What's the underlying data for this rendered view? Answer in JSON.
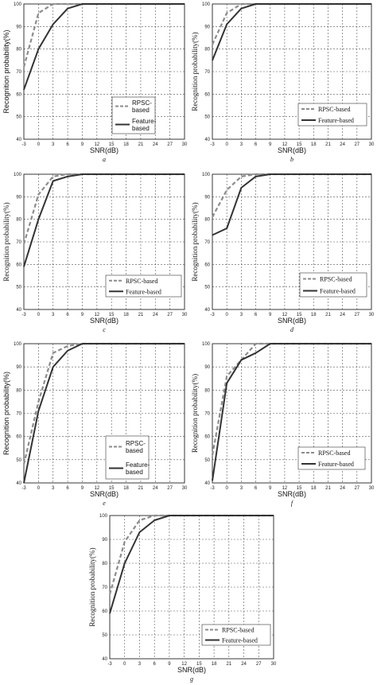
{
  "chart_data": [
    {
      "type": "line",
      "caption": "a",
      "xlabel": "SNR(dB)",
      "ylabel": "Recognition probability(%)",
      "xlim": [
        -3,
        30
      ],
      "ylim": [
        40,
        100
      ],
      "xticks": [
        "-3",
        "0",
        "3",
        "6",
        "9",
        "12",
        "15",
        "18",
        "21",
        "24",
        "27",
        "30"
      ],
      "yticks": [
        "40",
        "50",
        "60",
        "70",
        "80",
        "90",
        "100"
      ],
      "legend": {
        "entries": [
          "RPSC-\nbased",
          "Feature-\nbased"
        ],
        "position": "lower-right"
      },
      "series": [
        {
          "name": "RPSC-\nbased",
          "style": "dashed",
          "color": "#8c8c8c",
          "x": [
            -3,
            0,
            3,
            6,
            9,
            12,
            15,
            18,
            21,
            24,
            27,
            30
          ],
          "y": [
            72,
            96,
            100,
            100,
            100,
            100,
            100,
            100,
            100,
            100,
            100,
            100
          ]
        },
        {
          "name": "Feature-\nbased",
          "style": "solid",
          "color": "#333333",
          "x": [
            -3,
            0,
            3,
            6,
            9,
            12,
            15,
            18,
            21,
            24,
            27,
            30
          ],
          "y": [
            62,
            80,
            91,
            98,
            100,
            100,
            100,
            100,
            100,
            100,
            100,
            100
          ]
        }
      ]
    },
    {
      "type": "line",
      "caption": "b",
      "xlabel": "SNR(dB)",
      "ylabel": "Recognition probability(%)",
      "xlim": [
        -3,
        30
      ],
      "ylim": [
        40,
        100
      ],
      "xticks": [
        "-3",
        "0",
        "3",
        "6",
        "9",
        "12",
        "15",
        "18",
        "21",
        "24",
        "27",
        "30"
      ],
      "yticks": [
        "40",
        "50",
        "60",
        "70",
        "80",
        "90",
        "100"
      ],
      "legend": {
        "entries": [
          "RPSC-based",
          "Feature-based"
        ],
        "position": "lower-right"
      },
      "series": [
        {
          "name": "RPSC-based",
          "style": "dashed",
          "color": "#8c8c8c",
          "x": [
            -3,
            0,
            3,
            6,
            9,
            12,
            15,
            18,
            21,
            24,
            27,
            30
          ],
          "y": [
            82,
            96,
            100,
            100,
            100,
            100,
            100,
            100,
            100,
            100,
            100,
            100
          ]
        },
        {
          "name": "Feature-based",
          "style": "solid",
          "color": "#333333",
          "x": [
            -3,
            0,
            3,
            6,
            9,
            12,
            15,
            18,
            21,
            24,
            27,
            30
          ],
          "y": [
            75,
            91,
            98,
            100,
            100,
            100,
            100,
            100,
            100,
            100,
            100,
            100
          ]
        }
      ]
    },
    {
      "type": "line",
      "caption": "c",
      "xlabel": "SNR(dB)",
      "ylabel": "Recognition probability(%)",
      "xlim": [
        -3,
        30
      ],
      "ylim": [
        40,
        100
      ],
      "xticks": [
        "-3",
        "0",
        "3",
        "6",
        "9",
        "12",
        "15",
        "18",
        "21",
        "24",
        "27",
        "30"
      ],
      "yticks": [
        "40",
        "50",
        "60",
        "70",
        "80",
        "90",
        "100"
      ],
      "legend": {
        "entries": [
          "RPSC-based",
          "Feature-based"
        ],
        "position": "lower-right"
      },
      "series": [
        {
          "name": "RPSC-based",
          "style": "dashed",
          "color": "#8c8c8c",
          "x": [
            -3,
            0,
            3,
            6,
            9,
            12,
            15,
            18,
            21,
            24,
            27,
            30
          ],
          "y": [
            69,
            91,
            99,
            100,
            100,
            100,
            100,
            100,
            100,
            100,
            100,
            100
          ]
        },
        {
          "name": "Feature-based",
          "style": "solid",
          "color": "#333333",
          "x": [
            -3,
            0,
            3,
            6,
            9,
            12,
            15,
            18,
            21,
            24,
            27,
            30
          ],
          "y": [
            59,
            80,
            97,
            99,
            100,
            100,
            100,
            100,
            100,
            100,
            100,
            100
          ]
        }
      ]
    },
    {
      "type": "line",
      "caption": "d",
      "xlabel": "SNR(dB)",
      "ylabel": "Recognition probability(%)",
      "xlim": [
        -3,
        30
      ],
      "ylim": [
        40,
        100
      ],
      "xticks": [
        "-3",
        "0",
        "3",
        "6",
        "9",
        "12",
        "15",
        "18",
        "21",
        "24",
        "27",
        "30"
      ],
      "yticks": [
        "40",
        "50",
        "60",
        "70",
        "80",
        "90",
        "100"
      ],
      "legend": {
        "entries": [
          "RPSC-based",
          "Feature-based"
        ],
        "position": "lower-right"
      },
      "series": [
        {
          "name": "RPSC-based",
          "style": "dashed",
          "color": "#8c8c8c",
          "x": [
            -3,
            0,
            3,
            6,
            9,
            12,
            15,
            18,
            21,
            24,
            27,
            30
          ],
          "y": [
            81,
            93,
            99,
            100,
            100,
            100,
            100,
            100,
            100,
            100,
            100,
            100
          ]
        },
        {
          "name": "Feature-based",
          "style": "solid",
          "color": "#333333",
          "x": [
            -3,
            0,
            3,
            6,
            9,
            12,
            15,
            18,
            21,
            24,
            27,
            30
          ],
          "y": [
            73,
            76,
            94,
            99,
            100,
            100,
            100,
            100,
            100,
            100,
            100,
            100
          ]
        }
      ]
    },
    {
      "type": "line",
      "caption": "e",
      "xlabel": "SNR(dB)",
      "ylabel": "Recognition probability(%)",
      "xlim": [
        -3,
        30
      ],
      "ylim": [
        40,
        100
      ],
      "xticks": [
        "-3",
        "0",
        "3",
        "6",
        "9",
        "12",
        "15",
        "18",
        "21",
        "24",
        "27",
        "30"
      ],
      "yticks": [
        "40",
        "50",
        "60",
        "70",
        "80",
        "90",
        "100"
      ],
      "legend": {
        "entries": [
          "RPSC-\nbased",
          "Feature-\nbased"
        ],
        "position": "lower-right"
      },
      "series": [
        {
          "name": "RPSC-\nbased",
          "style": "dashed",
          "color": "#8c8c8c",
          "x": [
            -3,
            0,
            3,
            6,
            9,
            12,
            15,
            18,
            21,
            24,
            27,
            30
          ],
          "y": [
            48,
            75,
            96,
            99,
            100,
            100,
            100,
            100,
            100,
            100,
            100,
            100
          ]
        },
        {
          "name": "Feature-\nbased",
          "style": "solid",
          "color": "#333333",
          "x": [
            -3,
            0,
            3,
            6,
            9,
            12,
            15,
            18,
            21,
            24,
            27,
            30
          ],
          "y": [
            40,
            71,
            90,
            97,
            100,
            100,
            100,
            100,
            100,
            100,
            100,
            100
          ]
        }
      ]
    },
    {
      "type": "line",
      "caption": "f",
      "xlabel": "SNR(dB)",
      "ylabel": "Recognition probability(%)",
      "xlim": [
        -3,
        30
      ],
      "ylim": [
        40,
        100
      ],
      "xticks": [
        "-3",
        "0",
        "3",
        "6",
        "9",
        "12",
        "15",
        "18",
        "21",
        "24",
        "27",
        "30"
      ],
      "yticks": [
        "40",
        "50",
        "60",
        "70",
        "80",
        "90",
        "100"
      ],
      "legend": {
        "entries": [
          "RPSC-based",
          "Feature-based"
        ],
        "position": "lower-right"
      },
      "series": [
        {
          "name": "RPSC-based",
          "style": "dashed",
          "color": "#8c8c8c",
          "x": [
            -3,
            0,
            3,
            6,
            9,
            12,
            15,
            18,
            21,
            24,
            27,
            30
          ],
          "y": [
            52,
            86,
            93,
            100,
            100,
            100,
            100,
            100,
            100,
            100,
            100,
            100
          ]
        },
        {
          "name": "Feature-based",
          "style": "solid",
          "color": "#333333",
          "x": [
            -3,
            0,
            3,
            6,
            9,
            12,
            15,
            18,
            21,
            24,
            27,
            30
          ],
          "y": [
            41,
            83,
            93,
            96,
            100,
            100,
            100,
            100,
            100,
            100,
            100,
            100
          ]
        }
      ]
    },
    {
      "type": "line",
      "caption": "g",
      "xlabel": "SNR(dB)",
      "ylabel": "Recognition probability(%)",
      "xlim": [
        -3,
        30
      ],
      "ylim": [
        40,
        100
      ],
      "xticks": [
        "-3",
        "0",
        "3",
        "6",
        "9",
        "12",
        "15",
        "18",
        "21",
        "24",
        "27",
        "30"
      ],
      "yticks": [
        "40",
        "50",
        "60",
        "70",
        "80",
        "90",
        "100"
      ],
      "legend": {
        "entries": [
          "RPSC-based",
          "Feature-based"
        ],
        "position": "lower-right"
      },
      "series": [
        {
          "name": "RPSC-based",
          "style": "dashed",
          "color": "#8c8c8c",
          "x": [
            -3,
            0,
            3,
            6,
            9,
            12,
            15,
            18,
            21,
            24,
            27,
            30
          ],
          "y": [
            67,
            89,
            98,
            100,
            100,
            100,
            100,
            100,
            100,
            100,
            100,
            100
          ]
        },
        {
          "name": "Feature-based",
          "style": "solid",
          "color": "#333333",
          "x": [
            -3,
            0,
            3,
            6,
            9,
            12,
            15,
            18,
            21,
            24,
            27,
            30
          ],
          "y": [
            59,
            80,
            93,
            98,
            100,
            100,
            100,
            100,
            100,
            100,
            100,
            100
          ]
        }
      ]
    }
  ]
}
